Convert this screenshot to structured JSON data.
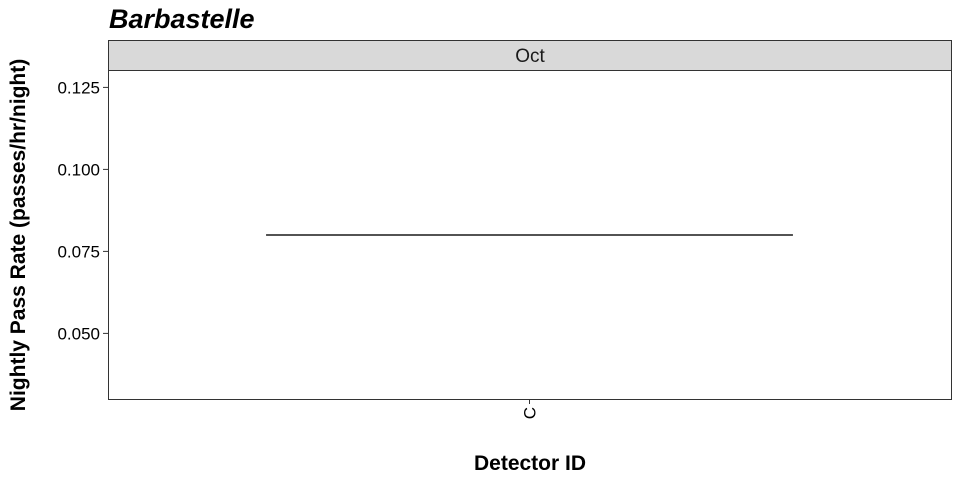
{
  "chart_data": {
    "type": "box",
    "title": "Barbastelle",
    "facet": "Oct",
    "xlabel": "Detector ID",
    "ylabel": "Nightly Pass Rate (passes/hr/night)",
    "categories": [
      "C"
    ],
    "values": [
      0.08
    ],
    "ylim": [
      0.03,
      0.13
    ],
    "yticks": [
      0.05,
      0.075,
      0.1,
      0.125
    ],
    "ytick_labels": [
      "0.050",
      "0.075",
      "0.100",
      "0.125"
    ],
    "grid": false,
    "legend": "none"
  }
}
